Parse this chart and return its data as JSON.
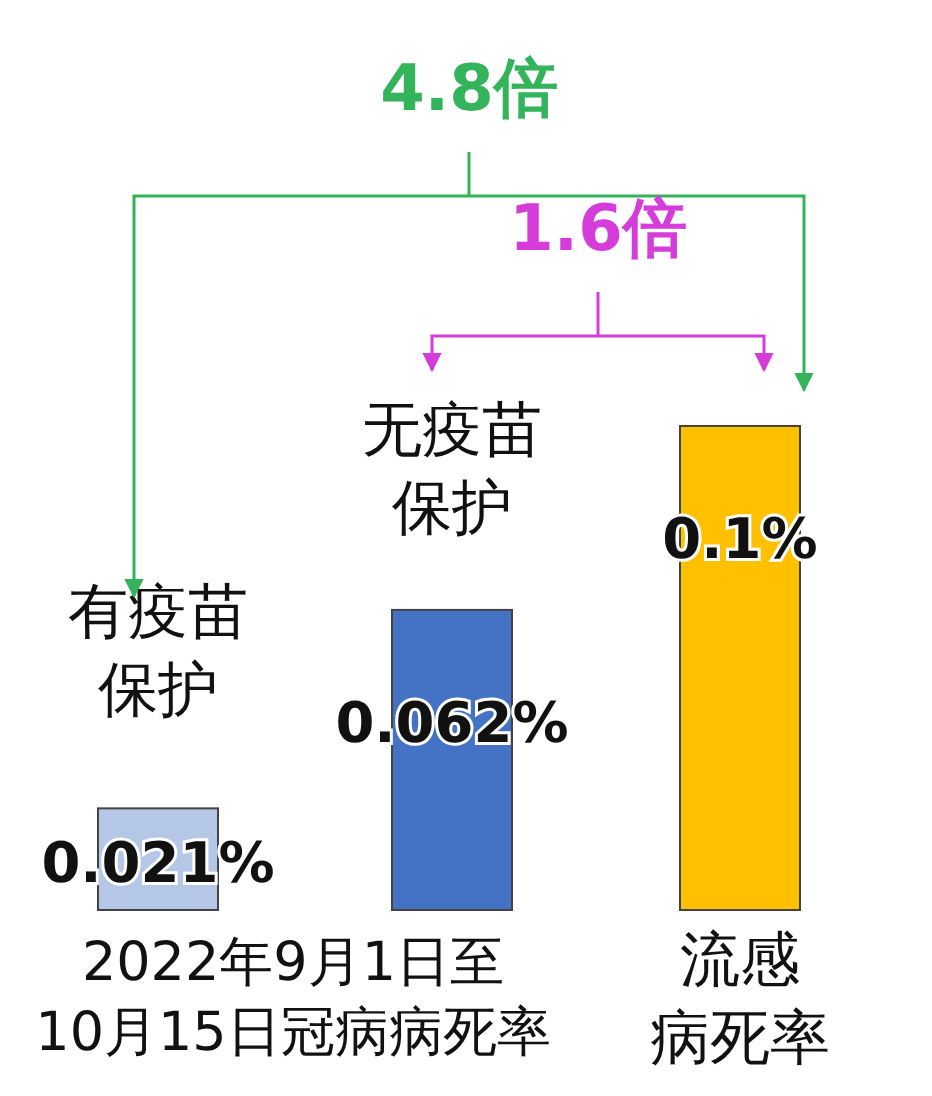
{
  "chart_data": {
    "type": "bar",
    "categories": [
      "有疫苗保护",
      "无疫苗保护",
      "流感病死率"
    ],
    "values": [
      0.021,
      0.062,
      0.1
    ],
    "value_labels": [
      "0.021%",
      "0.062%",
      "0.1%"
    ],
    "colors": [
      "#b4c7e7",
      "#4472c4",
      "#ffc000"
    ],
    "annotations": [
      "4.8倍",
      "1.6倍",
      "2022年9月1日至10月15日冠病病死率"
    ]
  }
}
